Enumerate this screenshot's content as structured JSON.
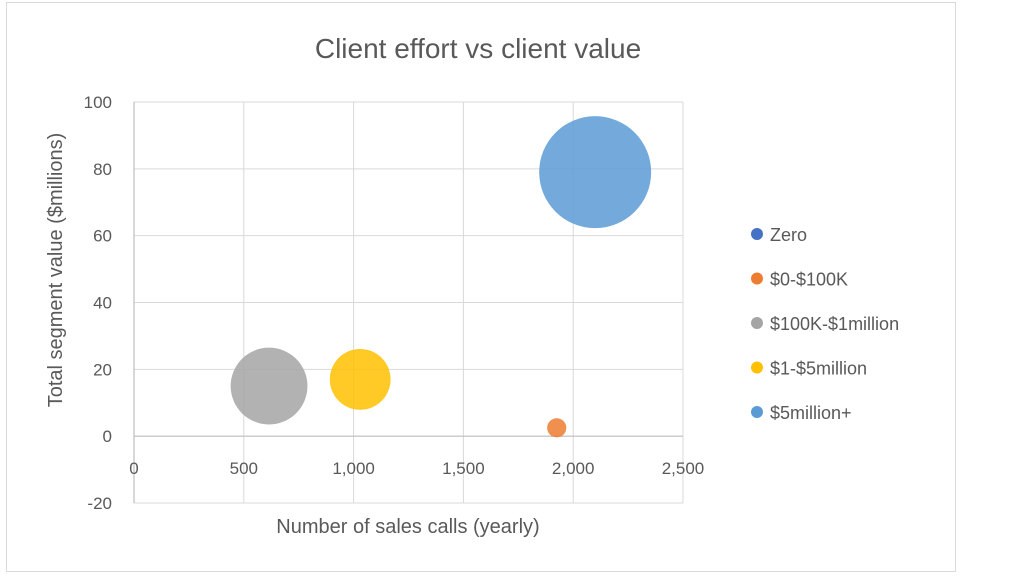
{
  "chart_data": {
    "type": "bubble",
    "title": "Client effort vs client value",
    "xlabel": "Number of sales calls (yearly)",
    "ylabel": "Total segment value ($millions)",
    "xlim": [
      0,
      2500
    ],
    "ylim": [
      -20,
      100
    ],
    "x_ticks": [
      0,
      500,
      1000,
      1500,
      2000,
      2500
    ],
    "x_tick_labels": [
      "0",
      "500",
      "1,000",
      "1,500",
      "2,000",
      "2,500"
    ],
    "y_ticks": [
      -20,
      0,
      20,
      40,
      60,
      80,
      100
    ],
    "y_tick_labels": [
      "-20",
      "0",
      "20",
      "40",
      "60",
      "80",
      "100"
    ],
    "grid": true,
    "legend_position": "right",
    "series": [
      {
        "name": "Zero",
        "color": "#4472c4",
        "points": []
      },
      {
        "name": "$0-$100K",
        "color": "#ed7d31",
        "points": [
          {
            "x": 1925,
            "y": 2.5,
            "size": 1
          }
        ]
      },
      {
        "name": "$100K-$1million",
        "color": "#a5a5a5",
        "points": [
          {
            "x": 615,
            "y": 15,
            "size": 16
          }
        ]
      },
      {
        "name": "$1-$5million",
        "color": "#ffc000",
        "points": [
          {
            "x": 1030,
            "y": 17,
            "size": 10
          }
        ]
      },
      {
        "name": "$5million+",
        "color": "#5b9bd5",
        "points": [
          {
            "x": 2100,
            "y": 79,
            "size": 34
          }
        ]
      }
    ]
  }
}
